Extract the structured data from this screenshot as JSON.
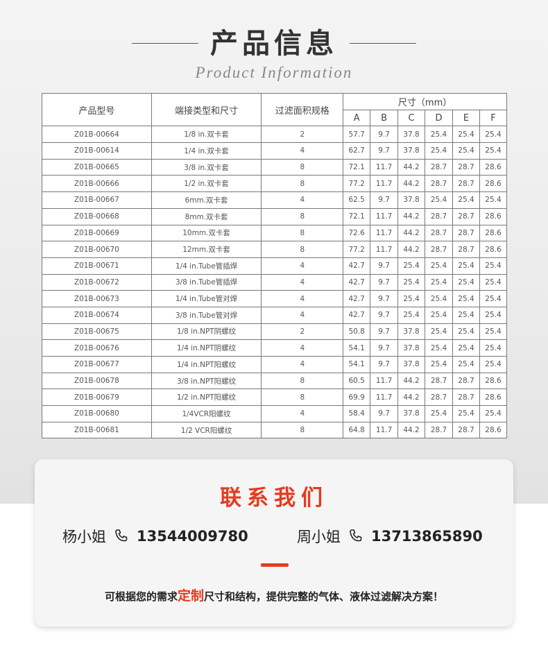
{
  "header": {
    "title": "产品信息",
    "subtitle": "Product Information"
  },
  "table": {
    "headers": {
      "model": "产品型号",
      "connection": "端接类型和尺寸",
      "filter_area": "过滤面积规格",
      "size": "尺寸（mm）",
      "dims": [
        "A",
        "B",
        "C",
        "D",
        "E",
        "F"
      ]
    },
    "rows": [
      [
        "Z01B-00664",
        "1/8 in.双卡套",
        "2",
        "57.7",
        "9.7",
        "37.8",
        "25.4",
        "25.4",
        "25.4"
      ],
      [
        "Z01B-00614",
        "1/4 in.双卡套",
        "4",
        "62.7",
        "9.7",
        "37.8",
        "25.4",
        "25.4",
        "25.4"
      ],
      [
        "Z01B-00665",
        "3/8 in.双卡套",
        "8",
        "72.1",
        "11.7",
        "44.2",
        "28.7",
        "28.7",
        "28.6"
      ],
      [
        "Z01B-00666",
        "1/2 in.双卡套",
        "8",
        "77.2",
        "11.7",
        "44.2",
        "28.7",
        "28.7",
        "28.6"
      ],
      [
        "Z01B-00667",
        "6mm.双卡套",
        "4",
        "62.5",
        "9.7",
        "37.8",
        "25.4",
        "25.4",
        "25.4"
      ],
      [
        "Z01B-00668",
        "8mm.双卡套",
        "8",
        "72.1",
        "11.7",
        "44.2",
        "28.7",
        "28.7",
        "28.6"
      ],
      [
        "Z01B-00669",
        "10mm.双卡套",
        "8",
        "72.6",
        "11.7",
        "44.2",
        "28.7",
        "28.7",
        "28.6"
      ],
      [
        "Z01B-00670",
        "12mm.双卡套",
        "8",
        "77.2",
        "11.7",
        "44.2",
        "28.7",
        "28.7",
        "28.6"
      ],
      [
        "Z01B-00671",
        "1/4 in.Tube管插焊",
        "4",
        "42.7",
        "9.7",
        "25.4",
        "25.4",
        "25.4",
        "25.4"
      ],
      [
        "Z01B-00672",
        "3/8 in.Tube管插焊",
        "4",
        "42.7",
        "9.7",
        "25.4",
        "25.4",
        "25.4",
        "25.4"
      ],
      [
        "Z01B-00673",
        "1/4 in.Tube管对焊",
        "4",
        "42.7",
        "9.7",
        "25.4",
        "25.4",
        "25.4",
        "25.4"
      ],
      [
        "Z01B-00674",
        "3/8 in.Tube管对焊",
        "4",
        "42.7",
        "9.7",
        "25.4",
        "25.4",
        "25.4",
        "25.4"
      ],
      [
        "Z01B-00675",
        "1/8 in.NPT阴螺纹",
        "2",
        "50.8",
        "9.7",
        "37.8",
        "25.4",
        "25.4",
        "25.4"
      ],
      [
        "Z01B-00676",
        "1/4 in.NPT阴螺纹",
        "4",
        "54.1",
        "9.7",
        "37.8",
        "25.4",
        "25.4",
        "25.4"
      ],
      [
        "Z01B-00677",
        "1/4 in.NPT阳螺纹",
        "4",
        "54.1",
        "9.7",
        "37.8",
        "25.4",
        "25.4",
        "25.4"
      ],
      [
        "Z01B-00678",
        "3/8 in.NPT阳螺纹",
        "8",
        "60.5",
        "11.7",
        "44.2",
        "28.7",
        "28.7",
        "28.6"
      ],
      [
        "Z01B-00679",
        "1/2 in.NPT阳螺纹",
        "8",
        "69.9",
        "11.7",
        "44.2",
        "28.7",
        "28.7",
        "28.6"
      ],
      [
        "Z01B-00680",
        "1/4VCR阳螺纹",
        "4",
        "58.4",
        "9.7",
        "37.8",
        "25.4",
        "25.4",
        "25.4"
      ],
      [
        "Z01B-00681",
        "1/2 VCR阳螺纹",
        "8",
        "64.8",
        "11.7",
        "44.2",
        "28.7",
        "28.7",
        "28.6"
      ]
    ]
  },
  "contact": {
    "title": "联系我们",
    "people": [
      {
        "name": "杨小姐",
        "phone": "13544009780",
        "icon": "phone-icon"
      },
      {
        "name": "周小姐",
        "phone": "13713865890",
        "icon": "phone-icon"
      }
    ],
    "slogan_pre": "可根据您的需求",
    "slogan_hl": "定制",
    "slogan_post": "尺寸和结构，提供完整的气体、液体过滤解决方案！",
    "accent": "#e63a1e"
  }
}
